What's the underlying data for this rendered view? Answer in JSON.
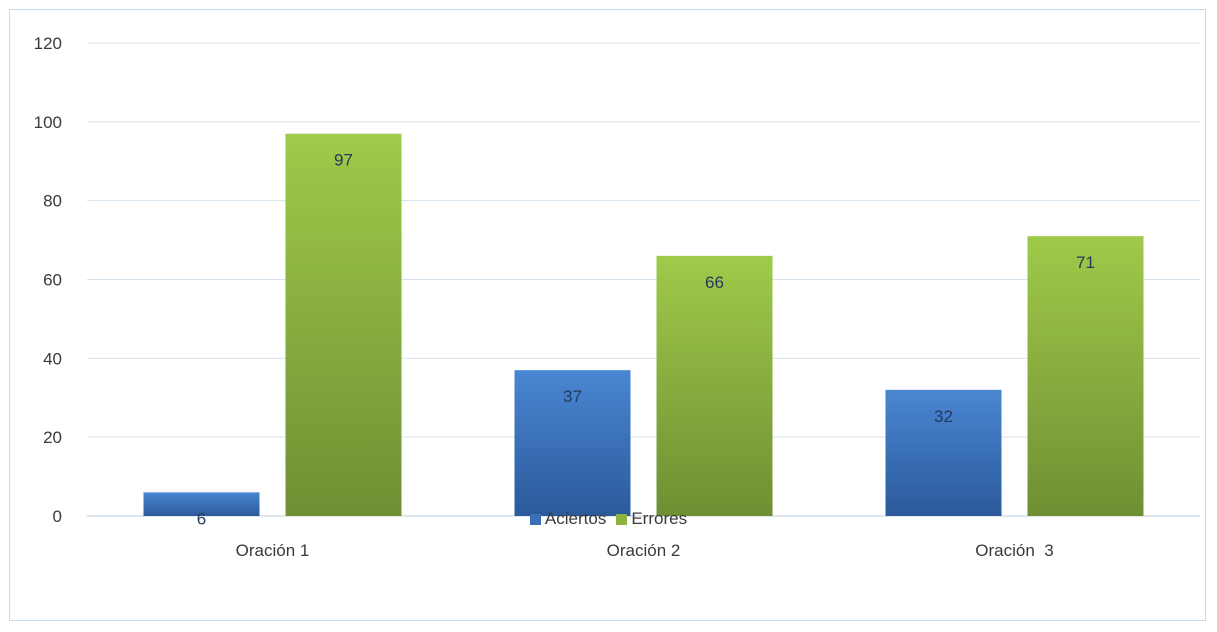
{
  "chart_data": {
    "type": "bar",
    "categories": [
      "Oración 1",
      "Oración 2",
      "Oración  3"
    ],
    "series": [
      {
        "name": "Aciertos",
        "values": [
          6,
          37,
          32
        ],
        "color": "#3a6fb8"
      },
      {
        "name": "Errores",
        "values": [
          97,
          66,
          71
        ],
        "color": "#8db43e"
      }
    ],
    "ylim": [
      0,
      120
    ],
    "yticks": [
      0,
      20,
      40,
      60,
      80,
      100,
      120
    ],
    "grid": true,
    "legend_position": "bottom",
    "title": "",
    "xlabel": "",
    "ylabel": ""
  }
}
